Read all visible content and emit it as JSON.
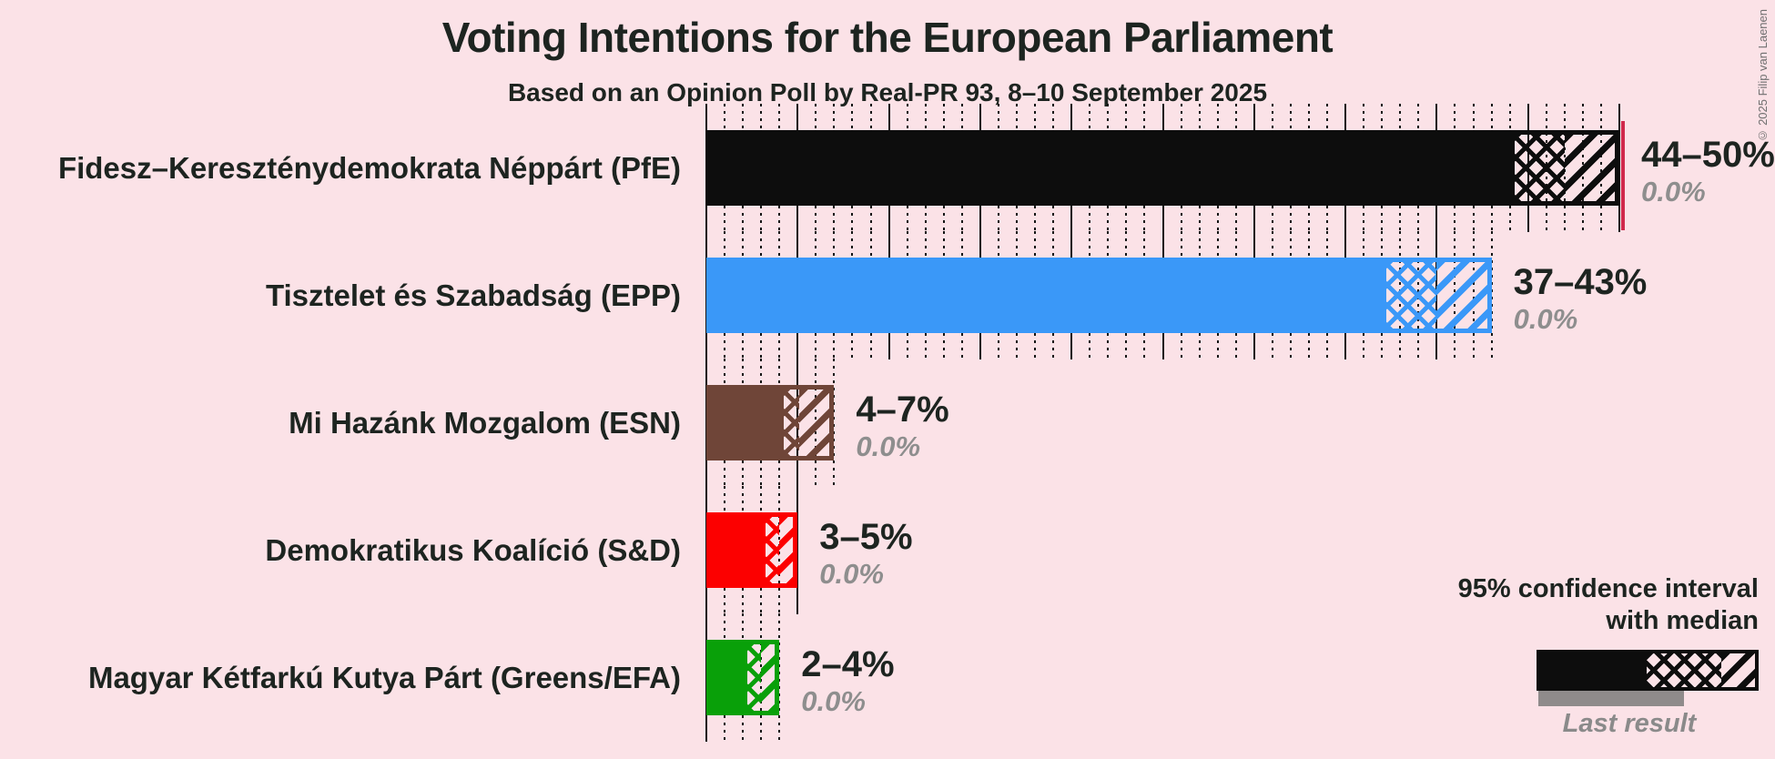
{
  "title": "Voting Intentions for the European Parliament",
  "subtitle": "Based on an Opinion Poll by Real-PR 93, 8–10 September 2025",
  "copyright": "© 2025 Filip van Laenen",
  "colors": {
    "background": "#FBE2E7",
    "text": "#1D2420",
    "muted_text": "#8E8E8E",
    "grid": "#161616",
    "majority_line": "#D0294C",
    "last_result_bar": "#8F8B8B"
  },
  "chart_data": {
    "type": "bar",
    "orientation": "horizontal",
    "title": "Voting Intentions for the European Parliament",
    "subtitle": "Based on an Opinion Poll by Real-PR 93, 8–10 September 2025",
    "x_axis": {
      "min": 0,
      "max": 50,
      "unit": "%",
      "solid_grid_step": 5,
      "dotted_grid_step": 1,
      "grid": true,
      "majority_line_pct": 50
    },
    "parties": [
      {
        "label": "Fidesz–Kereszténydemokrata Néppárt (PfE)",
        "ci_low": 44,
        "median": 47,
        "ci_high": 50,
        "range_label": "44–50%",
        "last_result": 0.0,
        "last_result_label": "0.0%",
        "color": "#0D0D0D"
      },
      {
        "label": "Tisztelet és Szabadság (EPP)",
        "ci_low": 37,
        "median": 40,
        "ci_high": 43,
        "range_label": "37–43%",
        "last_result": 0.0,
        "last_result_label": "0.0%",
        "color": "#3A98F8"
      },
      {
        "label": "Mi Hazánk Mozgalom (ESN)",
        "ci_low": 4,
        "median": 5,
        "ci_high": 7,
        "range_label": "4–7%",
        "last_result": 0.0,
        "last_result_label": "0.0%",
        "color": "#6F4538"
      },
      {
        "label": "Demokratikus Koalíció (S&D)",
        "ci_low": 3,
        "median": 4,
        "ci_high": 5,
        "range_label": "3–5%",
        "last_result": 0.0,
        "last_result_label": "0.0%",
        "color": "#FC0000"
      },
      {
        "label": "Magyar Kétfarkú Kutya Párt (Greens/EFA)",
        "ci_low": 2,
        "median": 3,
        "ci_high": 4,
        "range_label": "2–4%",
        "last_result": 0.0,
        "last_result_label": "0.0%",
        "color": "#09A009"
      }
    ]
  },
  "legend": {
    "ci_label_line1": "95% confidence interval",
    "ci_label_line2": "with median",
    "last_result_label": "Last result"
  }
}
